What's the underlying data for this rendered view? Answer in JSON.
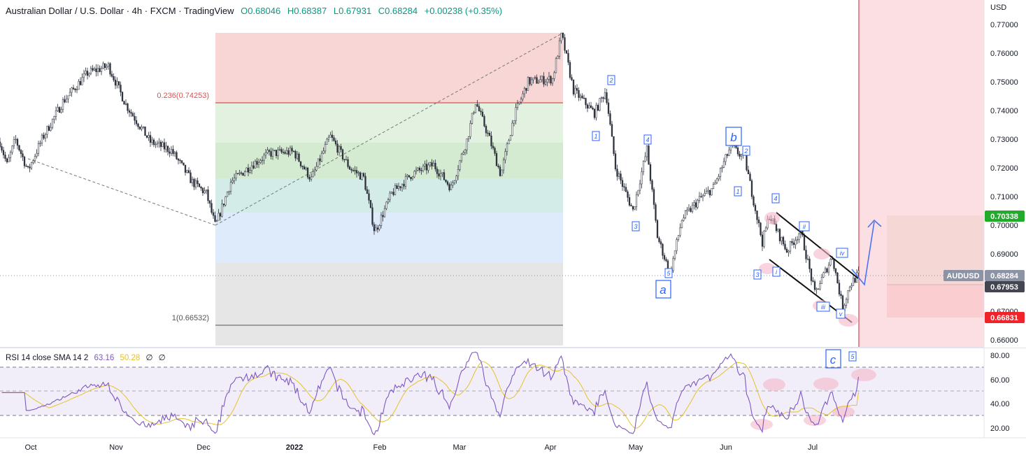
{
  "header": {
    "symbol": "Australian Dollar / U.S. Dollar",
    "interval": "4h",
    "source": "FXCM",
    "platform": "TradingView",
    "sep": "·",
    "open": "O0.68046",
    "high": "H0.68387",
    "low": "L0.67931",
    "close": "C0.68284",
    "change": "+0.00238 (+0.35%)"
  },
  "currency_label": "USD",
  "rsi_header": {
    "title": "RSI 14 close SMA 14 2",
    "rsi_value": "63.16",
    "sma_value": "50.28",
    "z1": "∅",
    "z2": "∅"
  },
  "colors": {
    "candle": "#2a2e39",
    "rsi": "#7e57c2",
    "rsi_sma": "#e6c229",
    "fib_red": "#f7c9c9",
    "fib_green1": "#dcefd9",
    "fib_green2": "#cfe7cb",
    "fib_teal": "#cfe9e6",
    "fib_blue": "#dbebfb",
    "fib_gray": "#e3e3e3",
    "wave_label": "#2962ff",
    "price_tag_green": "#22ab2b",
    "price_tag_red": "#f0222a",
    "price_tag_dark": "#434651",
    "price_tag_audusd": "#8c93a5"
  },
  "price_axis": {
    "ticks": [
      "0.77000",
      "0.76000",
      "0.75000",
      "0.74000",
      "0.73000",
      "0.72000",
      "0.71000",
      "0.70000",
      "0.69000",
      "0.67000",
      "0.66000"
    ],
    "range": [
      0.6575,
      0.7785
    ]
  },
  "price_tags": {
    "target": "0.70338",
    "symbol": "AUDUSD",
    "last": "0.68284",
    "entry": "0.67953",
    "stop": "0.66831"
  },
  "rsi_axis": {
    "ticks": [
      "80.00",
      "60.00",
      "40.00",
      "20.00"
    ],
    "range": [
      12,
      86
    ]
  },
  "time_axis": {
    "labels": [
      "Oct",
      "Nov",
      "Dec",
      "2022",
      "Feb",
      "Mar",
      "Apr",
      "May",
      "Jun",
      "Jul"
    ]
  },
  "fib": {
    "label_top": "0.236(0.74253)",
    "label_bottom": "1(0.66532)"
  },
  "wave_labels": {
    "major": [
      "a",
      "b",
      "c"
    ],
    "minor": [
      "1",
      "2",
      "3",
      "4",
      "5",
      "1",
      "2",
      "3",
      "4",
      "5",
      "i",
      "ii",
      "iii",
      "iv",
      "v"
    ]
  },
  "chart_data": {
    "type": "candlestick",
    "title": "Australian Dollar / U.S. Dollar · 4h · FXCM",
    "ylabel": "USD",
    "ylim": [
      0.6575,
      0.7785
    ],
    "x_labels": [
      "Oct",
      "Nov",
      "Dec",
      "2022",
      "Feb",
      "Mar",
      "Apr",
      "May",
      "Jun",
      "Jul"
    ],
    "price_path": [
      {
        "d": 0,
        "p": 0.729
      },
      {
        "d": 10,
        "p": 0.721
      },
      {
        "d": 22,
        "p": 0.73
      },
      {
        "d": 40,
        "p": 0.719
      },
      {
        "d": 60,
        "p": 0.73
      },
      {
        "d": 90,
        "p": 0.743
      },
      {
        "d": 125,
        "p": 0.753
      },
      {
        "d": 155,
        "p": 0.7555
      },
      {
        "d": 180,
        "p": 0.742
      },
      {
        "d": 215,
        "p": 0.729
      },
      {
        "d": 245,
        "p": 0.726
      },
      {
        "d": 275,
        "p": 0.715
      },
      {
        "d": 295,
        "p": 0.711
      },
      {
        "d": 308,
        "p": 0.6995
      },
      {
        "d": 330,
        "p": 0.715
      },
      {
        "d": 360,
        "p": 0.721
      },
      {
        "d": 385,
        "p": 0.725
      },
      {
        "d": 420,
        "p": 0.7255
      },
      {
        "d": 445,
        "p": 0.716
      },
      {
        "d": 472,
        "p": 0.731
      },
      {
        "d": 500,
        "p": 0.72
      },
      {
        "d": 520,
        "p": 0.7165
      },
      {
        "d": 536,
        "p": 0.6975
      },
      {
        "d": 560,
        "p": 0.711
      },
      {
        "d": 590,
        "p": 0.718
      },
      {
        "d": 620,
        "p": 0.721
      },
      {
        "d": 645,
        "p": 0.713
      },
      {
        "d": 668,
        "p": 0.73
      },
      {
        "d": 680,
        "p": 0.743
      },
      {
        "d": 700,
        "p": 0.73
      },
      {
        "d": 716,
        "p": 0.7175
      },
      {
        "d": 735,
        "p": 0.738
      },
      {
        "d": 755,
        "p": 0.75
      },
      {
        "d": 790,
        "p": 0.751
      },
      {
        "d": 803,
        "p": 0.7665
      },
      {
        "d": 820,
        "p": 0.747
      },
      {
        "d": 850,
        "p": 0.739
      },
      {
        "d": 866,
        "p": 0.747
      },
      {
        "d": 880,
        "p": 0.72
      },
      {
        "d": 905,
        "p": 0.705
      },
      {
        "d": 925,
        "p": 0.7265
      },
      {
        "d": 940,
        "p": 0.696
      },
      {
        "d": 958,
        "p": 0.683
      },
      {
        "d": 975,
        "p": 0.702
      },
      {
        "d": 1000,
        "p": 0.709
      },
      {
        "d": 1020,
        "p": 0.713
      },
      {
        "d": 1045,
        "p": 0.7275
      },
      {
        "d": 1065,
        "p": 0.723
      },
      {
        "d": 1090,
        "p": 0.694
      },
      {
        "d": 1100,
        "p": 0.7035
      },
      {
        "d": 1125,
        "p": 0.691
      },
      {
        "d": 1145,
        "p": 0.698
      },
      {
        "d": 1165,
        "p": 0.676
      },
      {
        "d": 1190,
        "p": 0.689
      },
      {
        "d": 1205,
        "p": 0.671
      },
      {
        "d": 1215,
        "p": 0.679
      },
      {
        "d": 1228,
        "p": 0.683
      }
    ],
    "fib_levels": [
      {
        "label": "0.236(0.74253)",
        "price": 0.74253
      },
      {
        "label": "1(0.66532)",
        "price": 0.66532
      }
    ],
    "rsi": {
      "period": 14,
      "sma": 14,
      "last": 63.16,
      "sma_last": 50.28,
      "bands": [
        70,
        50,
        30
      ],
      "ylim": [
        12,
        86
      ]
    },
    "legend": "top-left"
  }
}
